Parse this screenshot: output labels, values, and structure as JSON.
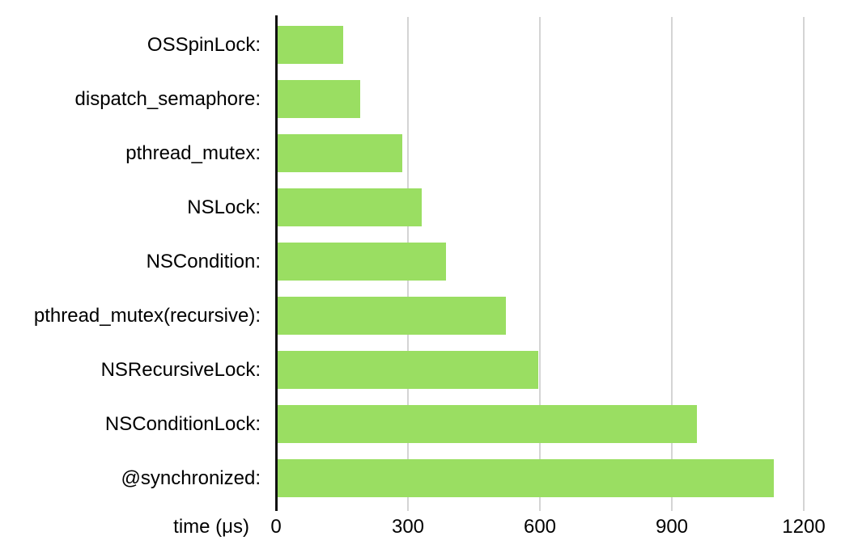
{
  "chart_data": {
    "type": "bar",
    "orientation": "horizontal",
    "title": "",
    "categories": [
      "OSSpinLock:",
      "dispatch_semaphore:",
      "pthread_mutex:",
      "NSLock:",
      "NSCondition:",
      "pthread_mutex(recursive):",
      "NSRecursiveLock:",
      "NSConditionLock:",
      "@synchronized:"
    ],
    "values": [
      150,
      190,
      285,
      330,
      385,
      520,
      595,
      955,
      1130
    ],
    "xlabel": "time (μs)",
    "xticks": [
      0,
      300,
      600,
      900,
      1200
    ],
    "xlim": [
      0,
      1200
    ],
    "grid": true,
    "legend_position": "none",
    "colors": {
      "bar": "#9ade62",
      "gridline": "#d4d4d4",
      "axis": "#111111",
      "text": "#000000",
      "background": "#ffffff"
    }
  }
}
